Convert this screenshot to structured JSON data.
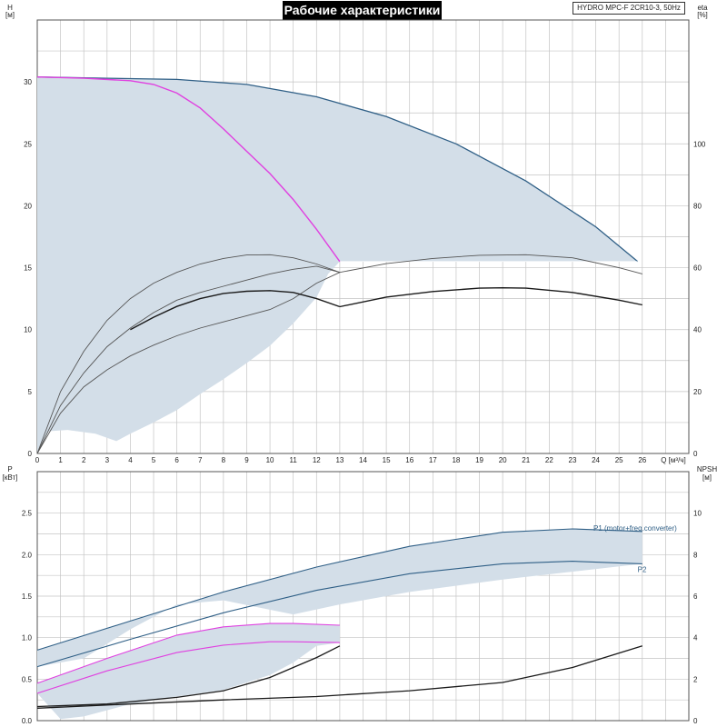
{
  "title": "Рабочие характеристики",
  "model": "HYDRO MPC-F 2CR10-3, 50Hz",
  "colors": {
    "band": "#d3dee8",
    "band_edge": "#2f5f86",
    "magenta": "#e040e0",
    "dark": "#1a1a1a",
    "gray": "#555555",
    "grid": "#c4c4c4"
  },
  "chart_data": [
    {
      "type": "line",
      "name": "top",
      "x_label": "Q [м³/ч]",
      "x_ticks": [
        0,
        1,
        2,
        3,
        4,
        5,
        6,
        7,
        8,
        9,
        10,
        11,
        12,
        13,
        14,
        15,
        16,
        17,
        18,
        19,
        20,
        21,
        22,
        23,
        24,
        25,
        26
      ],
      "xlim": [
        0,
        28
      ],
      "left_axis": {
        "label_top": "H",
        "label_unit": "[м]",
        "ticks": [
          0,
          5,
          10,
          15,
          20,
          25,
          30
        ],
        "lim": [
          0,
          35
        ]
      },
      "right_axis": {
        "label_top": "eta",
        "label_unit": "[%]",
        "ticks": [
          0,
          20,
          40,
          60,
          80,
          100
        ],
        "lim": [
          0,
          140
        ]
      },
      "band_H": {
        "upper": [
          [
            0,
            30.4
          ],
          [
            3,
            30.3
          ],
          [
            6,
            30.2
          ],
          [
            9,
            29.8
          ],
          [
            12,
            28.8
          ],
          [
            15,
            27.2
          ],
          [
            18,
            25.0
          ],
          [
            21,
            22.0
          ],
          [
            24,
            18.3
          ],
          [
            25.8,
            15.5
          ]
        ],
        "lower": [
          [
            25.8,
            15.5
          ],
          [
            13,
            15.5
          ],
          [
            12.5,
            14.5
          ],
          [
            12,
            12.6
          ],
          [
            11,
            10.5
          ],
          [
            10,
            8.7
          ],
          [
            9,
            7.3
          ],
          [
            8,
            6.0
          ],
          [
            7,
            4.8
          ],
          [
            6,
            3.5
          ],
          [
            5,
            2.5
          ],
          [
            4,
            1.6
          ],
          [
            3.4,
            1.0
          ],
          [
            2.5,
            1.6
          ],
          [
            1.3,
            1.9
          ],
          [
            0.5,
            1.8
          ],
          [
            0,
            0
          ]
        ]
      },
      "H_curve_max": [
        [
          0,
          30.4
        ],
        [
          3,
          30.3
        ],
        [
          6,
          30.2
        ],
        [
          9,
          29.8
        ],
        [
          12,
          28.8
        ],
        [
          15,
          27.2
        ],
        [
          18,
          25.0
        ],
        [
          21,
          22.0
        ],
        [
          24,
          18.3
        ],
        [
          25.8,
          15.5
        ]
      ],
      "H_curve_single": [
        [
          0,
          30.4
        ],
        [
          2,
          30.3
        ],
        [
          4,
          30.1
        ],
        [
          5,
          29.8
        ],
        [
          6,
          29.1
        ],
        [
          7,
          27.9
        ],
        [
          8,
          26.2
        ],
        [
          9,
          24.4
        ],
        [
          10,
          22.6
        ],
        [
          11,
          20.5
        ],
        [
          12,
          18.1
        ],
        [
          13,
          15.5
        ]
      ],
      "eta_curves": [
        {
          "style": "gray",
          "points": [
            [
              0,
              0
            ],
            [
              1,
              20
            ],
            [
              2,
              33
            ],
            [
              3,
              43
            ],
            [
              4,
              50
            ],
            [
              5,
              55
            ],
            [
              6,
              58.5
            ],
            [
              7,
              61.2
            ],
            [
              8,
              63
            ],
            [
              9,
              64.1
            ],
            [
              10,
              64.2
            ],
            [
              11,
              63.2
            ],
            [
              12,
              61.2
            ],
            [
              13,
              58.5
            ]
          ]
        },
        {
          "style": "gray",
          "points": [
            [
              0,
              0
            ],
            [
              1,
              15.5
            ],
            [
              2,
              26
            ],
            [
              3,
              34.5
            ],
            [
              4,
              40.5
            ],
            [
              5,
              45.5
            ],
            [
              6,
              49.5
            ],
            [
              7,
              52
            ],
            [
              8,
              54
            ],
            [
              9,
              56
            ],
            [
              10,
              58
            ],
            [
              11,
              59.5
            ],
            [
              12,
              60.5
            ],
            [
              13,
              58.5
            ],
            [
              15,
              61.3
            ],
            [
              17,
              63
            ],
            [
              19,
              64
            ],
            [
              21,
              64.2
            ],
            [
              23,
              63.2
            ],
            [
              25,
              60
            ],
            [
              26,
              58
            ]
          ]
        },
        {
          "style": "gray",
          "points": [
            [
              0,
              0
            ],
            [
              1,
              13
            ],
            [
              2,
              21.5
            ],
            [
              3,
              27
            ],
            [
              4,
              31.5
            ],
            [
              5,
              35
            ],
            [
              6,
              38
            ],
            [
              7,
              40.5
            ],
            [
              8,
              42.5
            ],
            [
              9,
              44.5
            ],
            [
              10,
              46.5
            ],
            [
              11,
              50
            ],
            [
              12,
              55
            ],
            [
              13,
              58.5
            ]
          ]
        },
        {
          "style": "dark",
          "points": [
            [
              4,
              40
            ],
            [
              5,
              44
            ],
            [
              6,
              47.5
            ],
            [
              7,
              50
            ],
            [
              8,
              51.7
            ],
            [
              9,
              52.4
            ],
            [
              10,
              52.6
            ],
            [
              11,
              52
            ],
            [
              12,
              50
            ],
            [
              13,
              47.4
            ]
          ]
        },
        {
          "style": "dark",
          "points": [
            [
              13,
              47.4
            ],
            [
              15,
              50.5
            ],
            [
              17,
              52.3
            ],
            [
              19,
              53.4
            ],
            [
              20,
              53.5
            ],
            [
              21,
              53.4
            ],
            [
              23,
              52
            ],
            [
              25,
              49.5
            ],
            [
              26,
              48
            ]
          ]
        }
      ]
    },
    {
      "type": "line",
      "name": "bottom",
      "left_axis": {
        "label_top": "P",
        "label_unit": "[кВт]",
        "ticks": [
          0.0,
          0.5,
          1.0,
          1.5,
          2.0,
          2.5
        ],
        "tick_labels": [
          "0.0",
          "0.5",
          "1.0",
          "1.5",
          "2.0",
          "2.5"
        ],
        "lim": [
          0,
          3.0
        ]
      },
      "right_axis": {
        "label_top": "NPSH",
        "label_unit": "[м]",
        "ticks": [
          0,
          2,
          4,
          6,
          8,
          10
        ],
        "lim": [
          0,
          12
        ]
      },
      "series": [
        {
          "name": "P1 (motor+freq.converter)",
          "style": "blue",
          "points": [
            [
              0,
              0.85
            ],
            [
              4,
              1.2
            ],
            [
              8,
              1.55
            ],
            [
              12,
              1.85
            ],
            [
              16,
              2.1
            ],
            [
              20,
              2.27
            ],
            [
              23,
              2.31
            ],
            [
              26,
              2.28
            ]
          ]
        },
        {
          "name": "P2",
          "style": "blue",
          "points": [
            [
              0,
              0.65
            ],
            [
              4,
              0.98
            ],
            [
              8,
              1.3
            ],
            [
              12,
              1.57
            ],
            [
              16,
              1.77
            ],
            [
              20,
              1.89
            ],
            [
              23,
              1.92
            ],
            [
              26,
              1.89
            ]
          ]
        },
        {
          "name": "",
          "style": "magenta",
          "points": [
            [
              0,
              0.45
            ],
            [
              3,
              0.75
            ],
            [
              6,
              1.03
            ],
            [
              8,
              1.13
            ],
            [
              10,
              1.17
            ],
            [
              11,
              1.17
            ],
            [
              13,
              1.15
            ]
          ]
        },
        {
          "name": "",
          "style": "magenta",
          "points": [
            [
              0,
              0.33
            ],
            [
              3,
              0.6
            ],
            [
              6,
              0.82
            ],
            [
              8,
              0.91
            ],
            [
              10,
              0.95
            ],
            [
              11,
              0.95
            ],
            [
              13,
              0.94
            ]
          ]
        },
        {
          "name": "",
          "style": "dark",
          "points": [
            [
              0,
              0.17
            ],
            [
              3,
              0.2
            ],
            [
              6,
              0.28
            ],
            [
              8,
              0.36
            ],
            [
              10,
              0.52
            ],
            [
              11,
              0.64
            ],
            [
              12,
              0.76
            ],
            [
              13,
              0.9
            ]
          ]
        },
        {
          "name": "",
          "style": "dark",
          "points": [
            [
              0,
              0.15
            ],
            [
              4,
              0.2
            ],
            [
              8,
              0.25
            ],
            [
              12,
              0.29
            ],
            [
              16,
              0.36
            ],
            [
              20,
              0.46
            ],
            [
              23,
              0.64
            ],
            [
              26,
              0.9
            ]
          ]
        }
      ],
      "bands": [
        {
          "upper": [
            [
              0,
              0.85
            ],
            [
              4,
              1.2
            ],
            [
              8,
              1.55
            ],
            [
              12,
              1.85
            ],
            [
              16,
              2.1
            ],
            [
              20,
              2.27
            ],
            [
              23,
              2.31
            ],
            [
              26,
              2.28
            ]
          ],
          "lower": [
            [
              26,
              1.89
            ],
            [
              20,
              1.7
            ],
            [
              16,
              1.55
            ],
            [
              13,
              1.4
            ],
            [
              11,
              1.28
            ],
            [
              8,
              1.45
            ],
            [
              6,
              1.4
            ],
            [
              4,
              1.1
            ],
            [
              2,
              0.75
            ],
            [
              0,
              0.65
            ]
          ]
        },
        {
          "upper": [
            [
              0,
              0.45
            ],
            [
              3,
              0.75
            ],
            [
              6,
              1.03
            ],
            [
              8,
              1.13
            ],
            [
              10,
              1.17
            ],
            [
              11,
              1.17
            ],
            [
              13,
              1.15
            ]
          ],
          "lower": [
            [
              13,
              0.94
            ],
            [
              12,
              0.9
            ],
            [
              11,
              0.7
            ],
            [
              10,
              0.55
            ],
            [
              8,
              0.37
            ],
            [
              6,
              0.29
            ],
            [
              4,
              0.2
            ],
            [
              2,
              0.05
            ],
            [
              1,
              0.02
            ],
            [
              0,
              0.33
            ]
          ]
        }
      ]
    }
  ]
}
